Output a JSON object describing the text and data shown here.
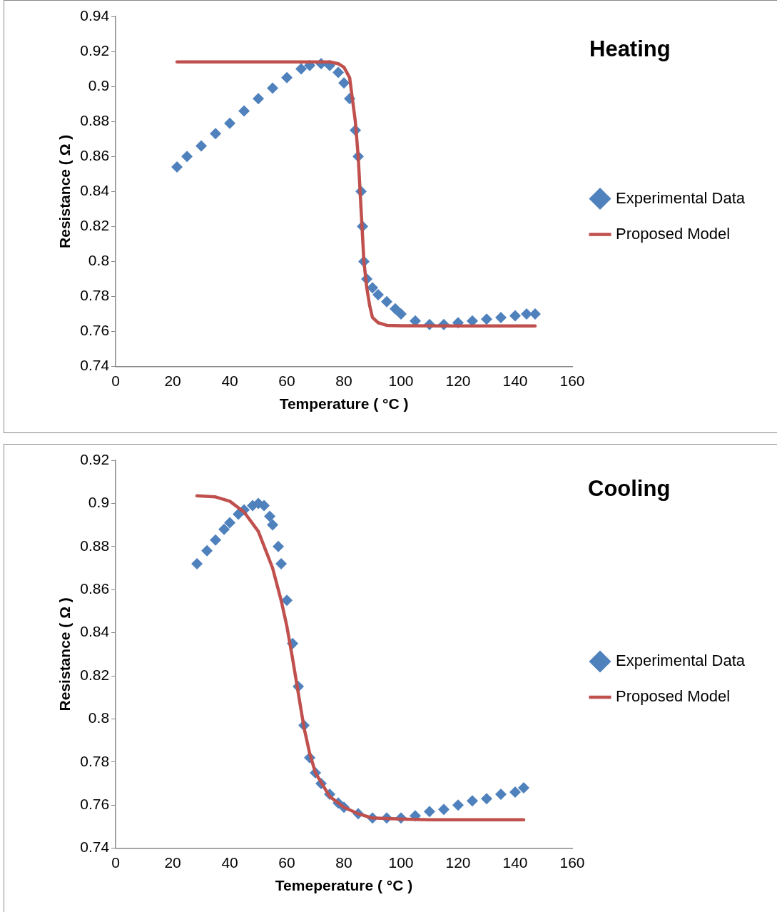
{
  "chart_data": [
    {
      "type": "scatter",
      "title": "Heating",
      "xlabel": "Temperature ( °C )",
      "ylabel": "Resistance ( Ω )",
      "xlim": [
        0,
        160
      ],
      "xticks": [
        0,
        20,
        40,
        60,
        80,
        100,
        120,
        140,
        160
      ],
      "ylim": [
        0.74,
        0.94
      ],
      "yticks": [
        0.74,
        0.76,
        0.78,
        0.8,
        0.82,
        0.84,
        0.86,
        0.88,
        0.9,
        0.92,
        0.94
      ],
      "grid": false,
      "legend": "right",
      "series": [
        {
          "name": "Experimental Data",
          "type": "scatter",
          "marker": "diamond",
          "color": "#4f81bd",
          "x": [
            21.5,
            25,
            30,
            35,
            40,
            45,
            50,
            55,
            60,
            65,
            68,
            72,
            75,
            78,
            80,
            82,
            84,
            85,
            86,
            86.5,
            87,
            88,
            90,
            92,
            95,
            98,
            100,
            105,
            110,
            115,
            120,
            125,
            130,
            135,
            140,
            144,
            147
          ],
          "values": [
            0.854,
            0.86,
            0.866,
            0.873,
            0.879,
            0.886,
            0.893,
            0.899,
            0.905,
            0.91,
            0.912,
            0.913,
            0.912,
            0.908,
            0.902,
            0.893,
            0.875,
            0.86,
            0.84,
            0.82,
            0.8,
            0.79,
            0.785,
            0.781,
            0.777,
            0.773,
            0.77,
            0.766,
            0.764,
            0.764,
            0.765,
            0.766,
            0.767,
            0.768,
            0.769,
            0.77,
            0.77
          ]
        },
        {
          "name": "Proposed Model",
          "type": "line",
          "marker": "none",
          "color": "#c0504d",
          "x": [
            21.5,
            40,
            60,
            75,
            78,
            80,
            82,
            84,
            85,
            86,
            87,
            88,
            89,
            90,
            92,
            95,
            100,
            120,
            147
          ],
          "values": [
            0.914,
            0.914,
            0.914,
            0.914,
            0.913,
            0.911,
            0.905,
            0.88,
            0.86,
            0.83,
            0.8,
            0.785,
            0.775,
            0.768,
            0.765,
            0.7635,
            0.7633,
            0.7632,
            0.7632
          ]
        }
      ]
    },
    {
      "type": "scatter",
      "title": "Cooling",
      "xlabel": "Temeperature ( °C )",
      "ylabel": "Resistance ( Ω )",
      "xlim": [
        0,
        160
      ],
      "xticks": [
        0,
        20,
        40,
        60,
        80,
        100,
        120,
        140,
        160
      ],
      "ylim": [
        0.74,
        0.92
      ],
      "yticks": [
        0.74,
        0.76,
        0.78,
        0.8,
        0.82,
        0.84,
        0.86,
        0.88,
        0.9,
        0.92
      ],
      "grid": false,
      "legend": "right",
      "series": [
        {
          "name": "Experimental Data",
          "type": "scatter",
          "marker": "diamond",
          "color": "#4f81bd",
          "x": [
            28.5,
            32,
            35,
            38,
            40,
            43,
            45,
            48,
            50,
            52,
            54,
            55,
            57,
            58,
            60,
            62,
            64,
            66,
            68,
            70,
            72,
            75,
            78,
            80,
            85,
            90,
            95,
            100,
            105,
            110,
            115,
            120,
            125,
            130,
            135,
            140,
            143
          ],
          "values": [
            0.872,
            0.878,
            0.883,
            0.888,
            0.891,
            0.895,
            0.897,
            0.899,
            0.9,
            0.899,
            0.894,
            0.89,
            0.88,
            0.872,
            0.855,
            0.835,
            0.815,
            0.797,
            0.782,
            0.775,
            0.77,
            0.765,
            0.761,
            0.759,
            0.756,
            0.754,
            0.754,
            0.754,
            0.755,
            0.757,
            0.758,
            0.76,
            0.762,
            0.763,
            0.765,
            0.766,
            0.768
          ]
        },
        {
          "name": "Proposed Model",
          "type": "line",
          "marker": "none",
          "color": "#c0504d",
          "x": [
            28.5,
            35,
            40,
            45,
            50,
            55,
            58,
            60,
            62,
            64,
            66,
            68,
            70,
            75,
            80,
            85,
            90,
            100,
            110,
            143
          ],
          "values": [
            0.9035,
            0.903,
            0.901,
            0.896,
            0.887,
            0.87,
            0.855,
            0.843,
            0.828,
            0.812,
            0.796,
            0.784,
            0.775,
            0.764,
            0.759,
            0.756,
            0.754,
            0.7535,
            0.7532,
            0.7532
          ]
        }
      ]
    }
  ]
}
